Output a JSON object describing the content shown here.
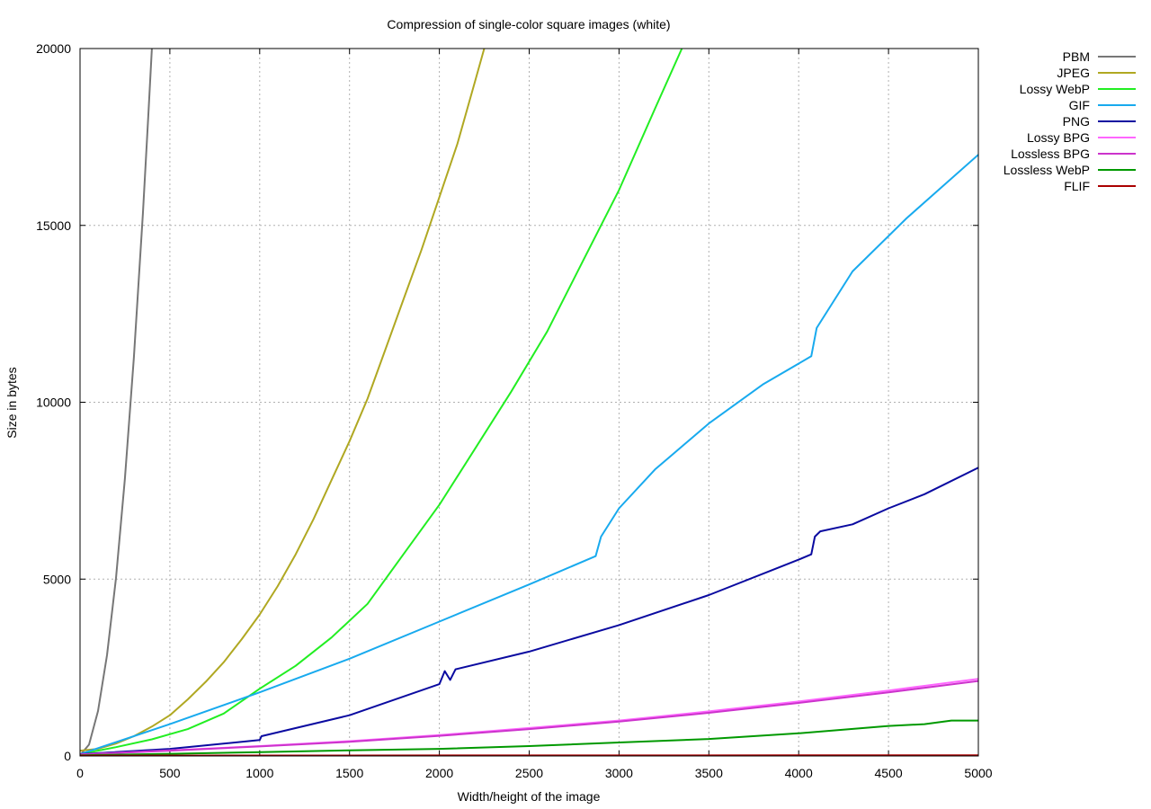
{
  "chart_data": {
    "type": "line",
    "title": "Compression of single-color square images (white)",
    "xlabel": "Width/height of the image",
    "ylabel": "Size in bytes",
    "xlim": [
      0,
      5000
    ],
    "ylim": [
      0,
      20000
    ],
    "x_ticks": [
      0,
      500,
      1000,
      1500,
      2000,
      2500,
      3000,
      3500,
      4000,
      4500,
      5000
    ],
    "y_ticks": [
      0,
      5000,
      10000,
      15000,
      20000
    ],
    "grid": true,
    "legend_position": "top-right outside",
    "series": [
      {
        "name": "PBM",
        "color": "#777777",
        "x": [
          0,
          50,
          100,
          150,
          200,
          250,
          300,
          350,
          380,
          400
        ],
        "y": [
          20,
          320,
          1270,
          2850,
          5030,
          7840,
          11270,
          15330,
          18090,
          20000
        ]
      },
      {
        "name": "JPEG",
        "color": "#b0a822",
        "x": [
          0,
          100,
          200,
          300,
          400,
          500,
          600,
          700,
          800,
          900,
          1000,
          1100,
          1200,
          1300,
          1400,
          1500,
          1600,
          1700,
          1800,
          1900,
          2000,
          2100,
          2200,
          2250
        ],
        "y": [
          150,
          200,
          350,
          560,
          830,
          1150,
          1600,
          2100,
          2650,
          3300,
          4000,
          4800,
          5700,
          6700,
          7800,
          8900,
          10100,
          11500,
          12900,
          14300,
          15800,
          17300,
          19100,
          20000
        ]
      },
      {
        "name": "Lossy WebP",
        "color": "#22ee22",
        "x": [
          0,
          200,
          400,
          600,
          800,
          1000,
          1200,
          1400,
          1600,
          1800,
          2000,
          2200,
          2400,
          2600,
          2800,
          3000,
          3200,
          3350
        ],
        "y": [
          50,
          250,
          470,
          760,
          1200,
          1900,
          2550,
          3350,
          4300,
          5700,
          7100,
          8700,
          10300,
          12000,
          14000,
          16000,
          18300,
          20000
        ]
      },
      {
        "name": "GIF",
        "color": "#18aaee",
        "x": [
          0,
          500,
          1000,
          1500,
          2000,
          2500,
          2870,
          2900,
          3000,
          3200,
          3500,
          3800,
          4070,
          4100,
          4300,
          4600,
          4800,
          5000
        ],
        "y": [
          50,
          900,
          1800,
          2750,
          3800,
          4850,
          5650,
          6200,
          7000,
          8100,
          9400,
          10500,
          11300,
          12100,
          13700,
          15200,
          16100,
          17000
        ]
      },
      {
        "name": "PNG",
        "color": "#0a0aa0",
        "x": [
          0,
          500,
          1000,
          1010,
          1500,
          2000,
          2030,
          2060,
          2090,
          2500,
          3000,
          3500,
          4000,
          4070,
          4090,
          4120,
          4300,
          4500,
          4700,
          5000
        ],
        "y": [
          50,
          200,
          450,
          560,
          1150,
          2030,
          2400,
          2150,
          2450,
          2950,
          3700,
          4550,
          5550,
          5700,
          6200,
          6350,
          6550,
          7000,
          7400,
          8150
        ]
      },
      {
        "name": "Lossy BPG",
        "color": "#ff66ff",
        "x": [
          0,
          500,
          1000,
          1500,
          2000,
          2500,
          3000,
          3500,
          4000,
          4500,
          5000
        ],
        "y": [
          40,
          160,
          280,
          420,
          590,
          790,
          1000,
          1260,
          1540,
          1850,
          2180
        ]
      },
      {
        "name": "Lossless BPG",
        "color": "#cc33cc",
        "x": [
          0,
          500,
          1000,
          1500,
          2000,
          2500,
          3000,
          3500,
          4000,
          4500,
          5000
        ],
        "y": [
          40,
          150,
          270,
          400,
          570,
          760,
          970,
          1220,
          1500,
          1800,
          2120
        ]
      },
      {
        "name": "Lossless WebP",
        "color": "#009900",
        "x": [
          0,
          500,
          1000,
          1500,
          2000,
          2500,
          3000,
          3500,
          4000,
          4500,
          4700,
          4850,
          5000
        ],
        "y": [
          20,
          60,
          110,
          160,
          200,
          280,
          380,
          480,
          640,
          850,
          900,
          1000,
          1000
        ]
      },
      {
        "name": "FLIF",
        "color": "#aa0000",
        "x": [
          0,
          5000
        ],
        "y": [
          10,
          20
        ]
      }
    ]
  }
}
